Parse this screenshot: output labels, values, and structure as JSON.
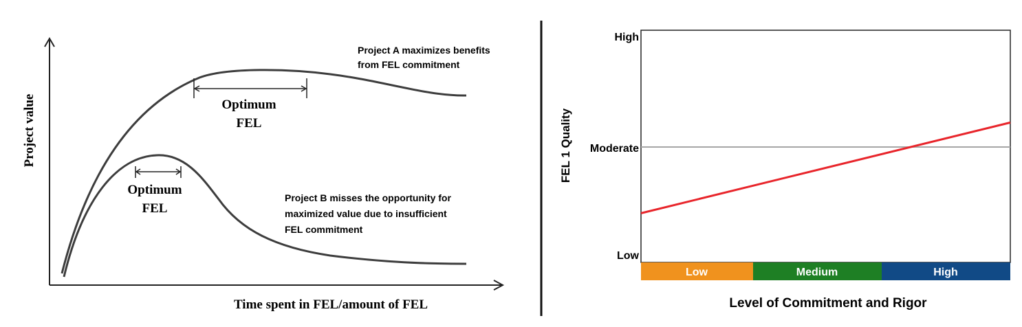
{
  "left_chart": {
    "ylabel": "Project value",
    "xlabel": "Time spent in FEL/amount of FEL",
    "annotation_a": [
      "Project A maximizes  benefits",
      "from FEL commitment"
    ],
    "annotation_b": [
      "Project B misses the opportunity for",
      "maximized value due to insufficient",
      "FEL commitment"
    ],
    "optimum_a": [
      "Optimum",
      "FEL"
    ],
    "optimum_b": [
      "Optimum",
      "FEL"
    ]
  },
  "right_chart": {
    "ylabel": "FEL 1 Quality",
    "xlabel": "Level of Commitment  and Rigor",
    "y_ticks": [
      "High",
      "Moderate",
      "Low"
    ],
    "bands": [
      {
        "label": "Low",
        "color": "#f0921e"
      },
      {
        "label": "Medium",
        "color": "#1e7f24"
      },
      {
        "label": "High",
        "color": "#114a86"
      }
    ]
  },
  "chart_data": [
    {
      "type": "line",
      "xlabel": "Time spent in FEL/amount of FEL",
      "ylabel": "Project value",
      "series": [
        {
          "name": "Project A"
        },
        {
          "name": "Project B"
        }
      ]
    },
    {
      "type": "line",
      "xlabel": "Level of Commitment  and Rigor",
      "ylabel": "FEL 1 Quality",
      "y_categories": [
        "Low",
        "Moderate",
        "High"
      ],
      "x_categories": [
        "Low",
        "Medium",
        "High"
      ],
      "series": [
        {
          "x": [
            0,
            1
          ],
          "y": [
            0.39,
            1.22
          ],
          "color": "#e8252b"
        }
      ],
      "reference_line": {
        "y": 1,
        "label": "Moderate"
      }
    }
  ]
}
